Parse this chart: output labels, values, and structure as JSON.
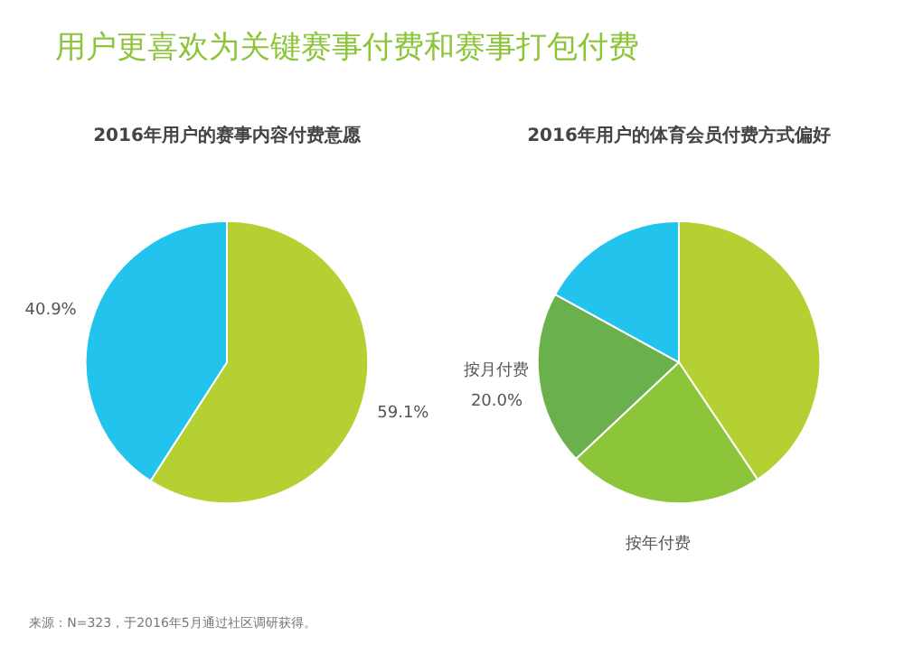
{
  "chart_data": [
    {
      "type": "other",
      "title": "用户更喜欢为关键赛事付费和赛事打包付费"
    },
    {
      "type": "pie",
      "title": "2016年用户的赛事内容付费意愿",
      "categories": [
        null,
        null
      ],
      "values": [
        59.1,
        40.9
      ],
      "colors": [
        "#b5d033",
        "#22c4ee"
      ],
      "value_labels": [
        "59.1%",
        "40.9%"
      ],
      "annotations": [
        "来源：N=323，于2016年5月通过社区调研获得。"
      ]
    },
    {
      "type": "pie",
      "title": "2016年用户的体育会员付费方式偏好",
      "categories": [
        null,
        "按年付费",
        "按月付费",
        null
      ],
      "values": [
        40.6,
        22.4,
        20.0,
        17.0
      ],
      "colors": [
        "#b5d033",
        "#8cc43a",
        "#6ab04c",
        "#22c4ee"
      ],
      "value_labels": [
        null,
        null,
        "20.0%",
        null
      ]
    }
  ]
}
